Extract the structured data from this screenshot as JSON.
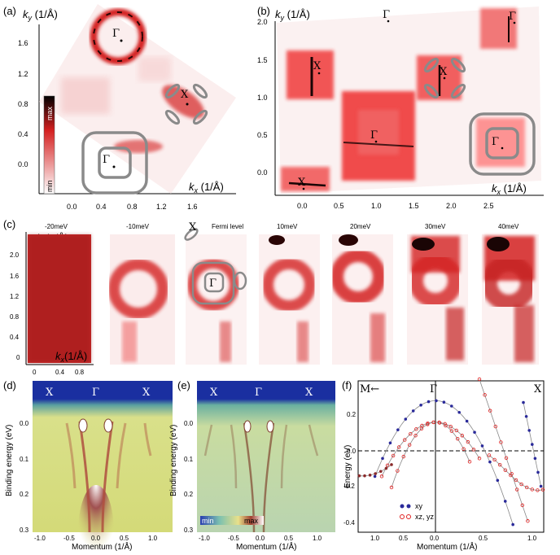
{
  "panels": {
    "a": {
      "label": "(a)",
      "ky": "k",
      "ky_sub": "y",
      "ky_unit": " (1/Å)",
      "kx": "k",
      "kx_sub": "x",
      "kx_unit": " (1/Å)",
      "yticks": [
        "1.6",
        "1.2",
        "0.8",
        "0.4",
        "0.0"
      ],
      "xticks": [
        "0.0",
        "0.4",
        "0.8",
        "1.2",
        "1.6"
      ],
      "cbar_max": "max",
      "cbar_min": "min",
      "gamma": "Γ",
      "x_point": "X"
    },
    "b": {
      "label": "(b)",
      "ky": "k",
      "ky_sub": "y",
      "ky_unit": " (1/Å)",
      "kx": "k",
      "kx_sub": "x",
      "kx_unit": " (1/Å)",
      "yticks": [
        "2.0",
        "1.5",
        "1.0",
        "0.5",
        "0.0"
      ],
      "xticks": [
        "0.0",
        "0.5",
        "1.0",
        "1.5",
        "2.0",
        "2.5"
      ],
      "gamma": "Γ",
      "x_point": "X"
    },
    "c": {
      "label": "(c)",
      "ky": "k",
      "ky_sub": "y",
      "ky_unit": "(1/Å)",
      "kx": "k",
      "kx_sub": "x",
      "kx_unit": "(1/Å)",
      "yticks": [
        "2.0",
        "1.6",
        "1.2",
        "0.8",
        "0.4",
        "0"
      ],
      "xticks": [
        "0",
        "0.4",
        "0.8"
      ],
      "energies": [
        "-20meV",
        "-10meV",
        "Fermi level",
        "10meV",
        "20meV",
        "30meV",
        "40meV"
      ],
      "gamma": "Γ",
      "x_point": "X"
    },
    "d": {
      "label": "(d)",
      "ylabel": "Binding energy (eV)",
      "xlabel": "Momentum (1/Å)",
      "yticks": [
        "0.0",
        "0.1",
        "0.2",
        "0.3"
      ],
      "xticks": [
        "-1.0",
        "-0.5",
        "0.0",
        "0.5",
        "1.0"
      ],
      "top_labels": [
        "X",
        "Γ",
        "X"
      ]
    },
    "e": {
      "label": "(e)",
      "ylabel": "Binding energy (eV)",
      "xlabel": "Momentum (1/Å)",
      "yticks": [
        "0.0",
        "0.1",
        "0.2",
        "0.3"
      ],
      "xticks": [
        "-1.0",
        "-0.5",
        "0.0",
        "0.5",
        "1.0"
      ],
      "top_labels": [
        "X",
        "Γ",
        "X"
      ],
      "cbar_min": "min",
      "cbar_max": "max"
    },
    "f": {
      "label": "(f)",
      "ylabel": "Energy (eV)",
      "xlabel": "Momentum (1/Å)",
      "yticks": [
        "0.2",
        "0.0",
        "-0.2",
        "-0.4"
      ],
      "xticks": [
        "1.0",
        "0.5",
        "0.0",
        "0.5",
        "1.0"
      ],
      "top_left": "M←",
      "top_mid": "Γ",
      "top_right": "X",
      "legend": [
        "xy",
        "xz, yz"
      ]
    }
  },
  "colors": {
    "red": "#d62020",
    "dark": "#1a0505",
    "grey": "#8a8a8a",
    "blue_band": "#1a3fb0",
    "yellow": "#e8e08a",
    "xy_blue": "#2a2a9a",
    "xz_red": "#e02020"
  }
}
